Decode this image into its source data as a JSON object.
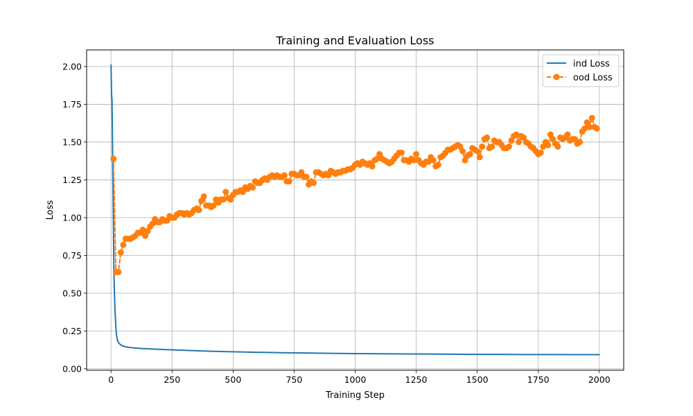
{
  "chart_data": {
    "type": "line",
    "title": "Training and Evaluation Loss",
    "xlabel": "Training Step",
    "ylabel": "Loss",
    "xlim": [
      -100,
      2100
    ],
    "ylim": [
      -0.01,
      2.11
    ],
    "xticks": [
      0,
      250,
      500,
      750,
      1000,
      1250,
      1500,
      1750,
      2000
    ],
    "yticks": [
      0.0,
      0.25,
      0.5,
      0.75,
      1.0,
      1.25,
      1.5,
      1.75,
      2.0
    ],
    "xtick_labels": [
      "0",
      "250",
      "500",
      "750",
      "1000",
      "1250",
      "1500",
      "1750",
      "2000"
    ],
    "ytick_labels": [
      "0.00",
      "0.25",
      "0.50",
      "0.75",
      "1.00",
      "1.25",
      "1.50",
      "1.75",
      "2.00"
    ],
    "grid": true,
    "legend_position": "top-right",
    "series": [
      {
        "name": "ind Loss",
        "color": "#1f77b4",
        "style": "solid",
        "marker": "none",
        "x": [
          0,
          2,
          4,
          6,
          8,
          10,
          12,
          14,
          16,
          18,
          20,
          22,
          25,
          28,
          32,
          36,
          40,
          45,
          50,
          60,
          70,
          80,
          100,
          125,
          150,
          175,
          200,
          250,
          300,
          350,
          400,
          450,
          500,
          600,
          700,
          800,
          900,
          1000,
          1100,
          1200,
          1300,
          1400,
          1500,
          1600,
          1700,
          1800,
          1900,
          2000
        ],
        "y": [
          2.01,
          1.82,
          1.78,
          1.5,
          1.2,
          0.9,
          0.62,
          0.5,
          0.4,
          0.33,
          0.27,
          0.23,
          0.2,
          0.18,
          0.17,
          0.163,
          0.158,
          0.153,
          0.15,
          0.145,
          0.142,
          0.14,
          0.137,
          0.134,
          0.132,
          0.13,
          0.128,
          0.125,
          0.122,
          0.119,
          0.116,
          0.114,
          0.112,
          0.109,
          0.106,
          0.104,
          0.102,
          0.1,
          0.099,
          0.098,
          0.097,
          0.096,
          0.095,
          0.095,
          0.094,
          0.094,
          0.093,
          0.093
        ]
      },
      {
        "name": "ood Loss",
        "color": "#ff7f0e",
        "style": "dashed",
        "marker": "circle",
        "x": [
          10,
          20,
          30,
          40,
          50,
          60,
          70,
          80,
          90,
          100,
          110,
          120,
          130,
          140,
          150,
          160,
          170,
          180,
          190,
          200,
          210,
          220,
          230,
          240,
          250,
          260,
          270,
          280,
          290,
          300,
          310,
          320,
          330,
          340,
          350,
          360,
          370,
          380,
          390,
          400,
          410,
          420,
          430,
          440,
          450,
          460,
          470,
          480,
          490,
          500,
          510,
          520,
          530,
          540,
          550,
          560,
          570,
          580,
          590,
          600,
          610,
          620,
          630,
          640,
          650,
          660,
          670,
          680,
          690,
          700,
          710,
          720,
          730,
          740,
          750,
          760,
          770,
          780,
          790,
          800,
          810,
          820,
          830,
          840,
          850,
          860,
          870,
          880,
          890,
          900,
          910,
          920,
          930,
          940,
          950,
          960,
          970,
          980,
          990,
          1000,
          1010,
          1020,
          1030,
          1040,
          1050,
          1060,
          1070,
          1080,
          1090,
          1100,
          1110,
          1120,
          1130,
          1140,
          1150,
          1160,
          1170,
          1180,
          1190,
          1200,
          1210,
          1220,
          1230,
          1240,
          1250,
          1260,
          1270,
          1280,
          1290,
          1300,
          1310,
          1320,
          1330,
          1340,
          1350,
          1360,
          1370,
          1380,
          1390,
          1400,
          1410,
          1420,
          1430,
          1440,
          1450,
          1460,
          1470,
          1480,
          1490,
          1500,
          1510,
          1520,
          1530,
          1540,
          1550,
          1560,
          1570,
          1580,
          1590,
          1600,
          1610,
          1620,
          1630,
          1640,
          1650,
          1660,
          1670,
          1680,
          1690,
          1700,
          1710,
          1720,
          1730,
          1740,
          1750,
          1760,
          1770,
          1780,
          1790,
          1800,
          1810,
          1820,
          1830,
          1840,
          1850,
          1860,
          1870,
          1880,
          1890,
          1900,
          1910,
          1920,
          1930,
          1940,
          1950,
          1960,
          1970,
          1980,
          1990
        ],
        "y": [
          1.39,
          0.64,
          0.64,
          0.77,
          0.82,
          0.86,
          0.86,
          0.86,
          0.87,
          0.88,
          0.9,
          0.9,
          0.92,
          0.88,
          0.91,
          0.94,
          0.96,
          0.99,
          0.97,
          0.97,
          0.99,
          0.98,
          0.98,
          1.01,
          1.0,
          1.0,
          1.02,
          1.03,
          1.03,
          1.02,
          1.03,
          1.02,
          1.03,
          1.05,
          1.06,
          1.05,
          1.11,
          1.14,
          1.08,
          1.08,
          1.07,
          1.08,
          1.12,
          1.1,
          1.12,
          1.12,
          1.17,
          1.13,
          1.12,
          1.15,
          1.17,
          1.17,
          1.18,
          1.17,
          1.2,
          1.19,
          1.21,
          1.2,
          1.24,
          1.23,
          1.23,
          1.25,
          1.26,
          1.25,
          1.27,
          1.28,
          1.27,
          1.28,
          1.27,
          1.27,
          1.28,
          1.24,
          1.24,
          1.29,
          1.29,
          1.28,
          1.28,
          1.3,
          1.27,
          1.27,
          1.22,
          1.24,
          1.23,
          1.3,
          1.3,
          1.29,
          1.28,
          1.29,
          1.28,
          1.31,
          1.3,
          1.29,
          1.3,
          1.3,
          1.31,
          1.31,
          1.32,
          1.32,
          1.33,
          1.35,
          1.36,
          1.35,
          1.37,
          1.36,
          1.35,
          1.36,
          1.34,
          1.38,
          1.39,
          1.42,
          1.39,
          1.38,
          1.37,
          1.36,
          1.37,
          1.39,
          1.41,
          1.43,
          1.43,
          1.38,
          1.38,
          1.37,
          1.39,
          1.38,
          1.42,
          1.38,
          1.36,
          1.35,
          1.37,
          1.37,
          1.4,
          1.38,
          1.34,
          1.35,
          1.4,
          1.41,
          1.43,
          1.45,
          1.45,
          1.46,
          1.47,
          1.48,
          1.47,
          1.44,
          1.38,
          1.41,
          1.42,
          1.46,
          1.45,
          1.44,
          1.4,
          1.47,
          1.52,
          1.53,
          1.46,
          1.47,
          1.51,
          1.5,
          1.5,
          1.48,
          1.46,
          1.46,
          1.47,
          1.51,
          1.54,
          1.55,
          1.5,
          1.54,
          1.53,
          1.5,
          1.49,
          1.47,
          1.46,
          1.44,
          1.42,
          1.43,
          1.47,
          1.5,
          1.48,
          1.55,
          1.52,
          1.49,
          1.47,
          1.53,
          1.52,
          1.53,
          1.55,
          1.51,
          1.52,
          1.52,
          1.49,
          1.5,
          1.57,
          1.59,
          1.63,
          1.6,
          1.66,
          1.6,
          1.59
        ]
      }
    ]
  }
}
